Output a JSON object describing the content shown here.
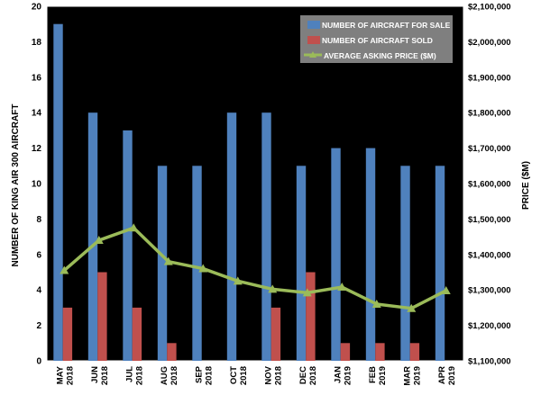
{
  "chart_data": {
    "type": "bar",
    "title": "",
    "categories": [
      [
        "MAY",
        "2018"
      ],
      [
        "JUN",
        "2018"
      ],
      [
        "JUL",
        "2018"
      ],
      [
        "AUG",
        "2018"
      ],
      [
        "SEP",
        "2018"
      ],
      [
        "OCT",
        "2018"
      ],
      [
        "NOV",
        "2018"
      ],
      [
        "DEC",
        "2018"
      ],
      [
        "JAN",
        "2019"
      ],
      [
        "FEB",
        "2019"
      ],
      [
        "MAR",
        "2019"
      ],
      [
        "APR",
        "2019"
      ]
    ],
    "ylabel": "NUMBER OF KING AIR 300 AIRCRAFT",
    "y2label": "PRICE ($M)",
    "ylim": [
      0,
      20
    ],
    "yticks": [
      "0",
      "2",
      "4",
      "6",
      "8",
      "10",
      "12",
      "14",
      "16",
      "18",
      "20"
    ],
    "y2lim": [
      1100000,
      2100000
    ],
    "y2ticks": [
      "$1,100,000",
      "$1,200,000",
      "$1,300,000",
      "$1,400,000",
      "$1,500,000",
      "$1,600,000",
      "$1,700,000",
      "$1,800,000",
      "$1,900,000",
      "$2,000,000",
      "$2,100,000"
    ],
    "series": [
      {
        "name": "NUMBER OF AIRCRAFT FOR SALE",
        "kind": "bar",
        "axis": "left",
        "color": "#4f81bd",
        "values": [
          19,
          14,
          13,
          11,
          11,
          14,
          14,
          11,
          12,
          12,
          11,
          11
        ]
      },
      {
        "name": "NUMBER OF AIRCRAFT SOLD",
        "kind": "bar",
        "axis": "left",
        "color": "#c0504d",
        "values": [
          3,
          5,
          3,
          1,
          0,
          0,
          3,
          5,
          1,
          1,
          1,
          0
        ]
      },
      {
        "name": "AVERAGE ASKING PRICE ($M)",
        "kind": "line",
        "axis": "right",
        "color": "#9bbb59",
        "values": [
          1355000,
          1440000,
          1475000,
          1380000,
          1360000,
          1325000,
          1302000,
          1292000,
          1308000,
          1260000,
          1248000,
          1298000
        ]
      }
    ],
    "colors": {
      "background": "#000000",
      "frame": "#ffffff",
      "tick_text": "#000000",
      "legend_bg": "#7f7f7f",
      "legend_text": "#ffffff"
    },
    "legend": "top-right",
    "grid": false
  }
}
